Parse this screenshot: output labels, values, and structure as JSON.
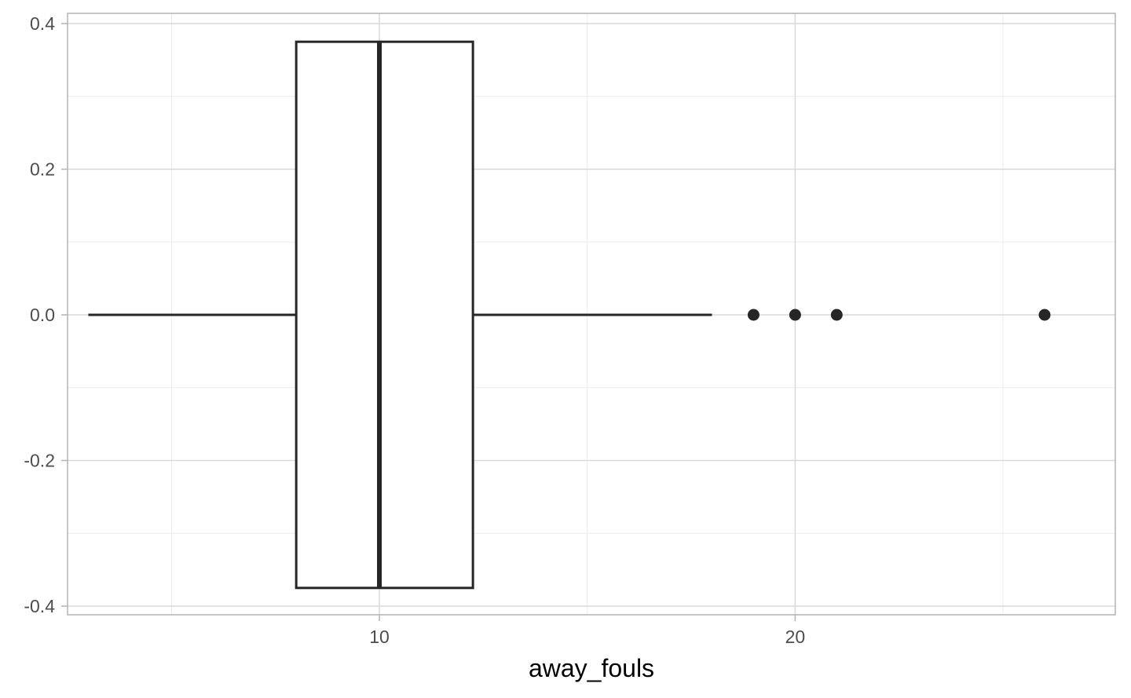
{
  "chart_data": {
    "type": "boxplot",
    "orientation": "horizontal",
    "xlabel": "away_fouls",
    "ylabel": "",
    "title": "",
    "xlim": [
      2.5,
      27.7
    ],
    "ylim": [
      -0.4,
      0.4
    ],
    "x_major_ticks": [
      10,
      20
    ],
    "x_minor_ticks": [
      5,
      15,
      25
    ],
    "y_major_ticks": [
      -0.4,
      -0.2,
      0.0,
      0.2,
      0.4
    ],
    "y_minor_ticks": [
      -0.3,
      -0.1,
      0.1,
      0.3
    ],
    "x_tick_labels": [
      "10",
      "20"
    ],
    "y_tick_labels": [
      "-0.4",
      "-0.2",
      "0.0",
      "0.2",
      "0.4"
    ],
    "grid": true,
    "box": {
      "whisker_low": 3,
      "q1": 8,
      "median": 10,
      "q3": 12.25,
      "whisker_high": 18,
      "y_center": 0,
      "half_width": 0.375
    },
    "outliers": [
      19,
      20,
      21,
      26
    ],
    "colors": {
      "panel_border": "#b3b3b3",
      "major_grid": "#d9d9d9",
      "minor_grid": "#ebebeb",
      "box_line": "#262626",
      "box_fill": "#ffffff",
      "outlier": "#262626"
    }
  }
}
